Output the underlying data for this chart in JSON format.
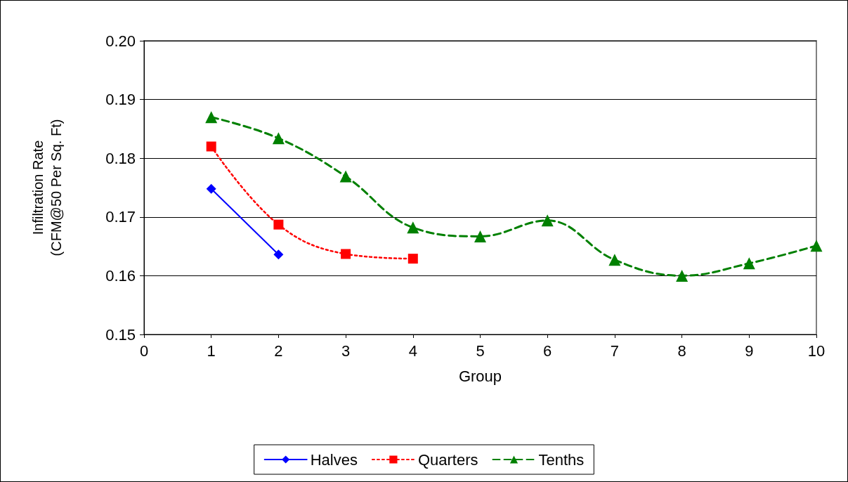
{
  "chart_data": {
    "type": "line",
    "xlabel": "Group",
    "ylabel": "Infiltration Rate\n(CFM@50 Per Sq. Ft)",
    "xlim": [
      0,
      10
    ],
    "xticks": [
      0,
      1,
      2,
      3,
      4,
      5,
      6,
      7,
      8,
      9,
      10
    ],
    "ylim": [
      0.15,
      0.2
    ],
    "yticks": [
      0.15,
      0.16,
      0.17,
      0.18,
      0.19,
      {
        "value": 0.2,
        "label": "0.20"
      }
    ],
    "grid": "y",
    "legend": "bottom",
    "series": [
      {
        "name": "Halves",
        "color": "#0000ff",
        "marker": "diamond",
        "line_style": "solid",
        "x": [
          1,
          2
        ],
        "values": [
          0.1748,
          0.1636
        ]
      },
      {
        "name": "Quarters",
        "color": "#ff0000",
        "marker": "square",
        "line_style": "dotted",
        "x": [
          1,
          2,
          3,
          4
        ],
        "values": [
          0.182,
          0.1687,
          0.1637,
          0.1629
        ]
      },
      {
        "name": "Tenths",
        "color": "#008000",
        "marker": "triangle",
        "line_style": "dashed",
        "x": [
          1,
          2,
          3,
          4,
          5,
          6,
          7,
          8,
          9,
          10
        ],
        "values": [
          0.187,
          0.1834,
          0.1769,
          0.1682,
          0.1667,
          0.1694,
          0.1627,
          0.16,
          0.1621,
          0.1651
        ]
      }
    ]
  }
}
